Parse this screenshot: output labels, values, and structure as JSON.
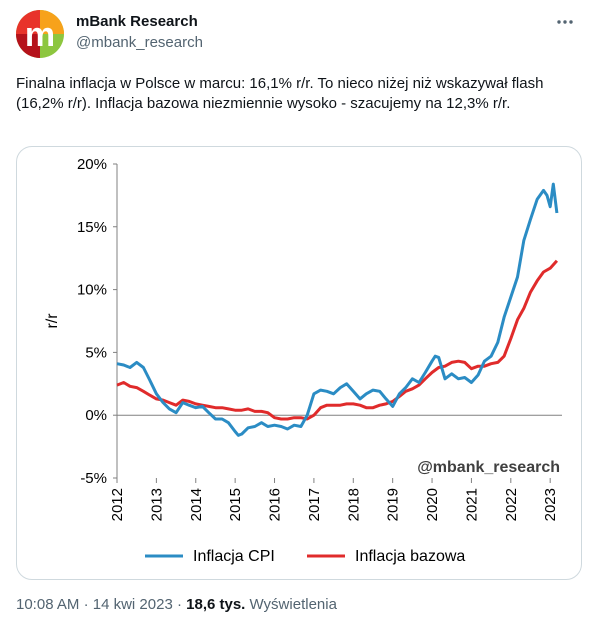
{
  "tweet": {
    "author_name": "mBank Research",
    "author_handle": "@mbank_research",
    "avatar_letter": "m",
    "text": "Finalna inflacja w Polsce w marcu: 16,1% r/r. To nieco niżej niż wskazywał flash (16,2% r/r). Inflacja bazowa niezmiennie wysoko - szacujemy na 12,3% r/r.",
    "time": "10:08 AM",
    "sep1": "·",
    "date": "14 kwi 2023",
    "sep2": "·",
    "views_count": "18,6 tys.",
    "views_label": "Wyświetlenia"
  },
  "colors": {
    "cpi": "#2b8cc4",
    "core": "#e02b2b",
    "avatar_bg": "#8dc63f"
  },
  "icons": {
    "more": "more-horizontal-icon"
  },
  "chart_data": {
    "type": "line",
    "ylabel": "r/r",
    "watermark": "@mbank_research",
    "ylim": [
      -5,
      20
    ],
    "yticks": [
      20,
      15,
      10,
      5,
      0,
      -5
    ],
    "ytick_labels": [
      "20%",
      "15%",
      "10%",
      "5%",
      "0%",
      "-5%"
    ],
    "xlim": [
      2012,
      2023.3
    ],
    "xticks": [
      2012,
      2013,
      2014,
      2015,
      2016,
      2017,
      2018,
      2019,
      2020,
      2021,
      2022,
      2023
    ],
    "xtick_labels": [
      "2012",
      "2013",
      "2014",
      "2015",
      "2016",
      "2017",
      "2018",
      "2019",
      "2020",
      "2021",
      "2022",
      "2023"
    ],
    "legend_position": "bottom",
    "series": [
      {
        "name": "Inflacja CPI",
        "x": [
          2012.0,
          2012.17,
          2012.33,
          2012.5,
          2012.67,
          2012.83,
          2013.0,
          2013.17,
          2013.33,
          2013.5,
          2013.67,
          2013.83,
          2014.0,
          2014.17,
          2014.33,
          2014.5,
          2014.67,
          2014.83,
          2015.0,
          2015.08,
          2015.17,
          2015.33,
          2015.5,
          2015.67,
          2015.83,
          2016.0,
          2016.17,
          2016.33,
          2016.5,
          2016.67,
          2016.83,
          2017.0,
          2017.17,
          2017.33,
          2017.5,
          2017.67,
          2017.83,
          2018.0,
          2018.17,
          2018.33,
          2018.5,
          2018.67,
          2018.83,
          2019.0,
          2019.17,
          2019.33,
          2019.5,
          2019.67,
          2019.83,
          2020.0,
          2020.08,
          2020.17,
          2020.33,
          2020.5,
          2020.67,
          2020.83,
          2021.0,
          2021.17,
          2021.33,
          2021.5,
          2021.67,
          2021.83,
          2022.0,
          2022.17,
          2022.33,
          2022.5,
          2022.67,
          2022.83,
          2022.92,
          2023.0,
          2023.08,
          2023.17
        ],
        "values": [
          4.1,
          4.0,
          3.8,
          4.2,
          3.8,
          2.8,
          1.7,
          1.0,
          0.5,
          0.2,
          1.0,
          0.8,
          0.6,
          0.7,
          0.2,
          -0.3,
          -0.3,
          -0.6,
          -1.3,
          -1.6,
          -1.5,
          -1.0,
          -0.9,
          -0.6,
          -0.9,
          -0.8,
          -0.9,
          -1.1,
          -0.8,
          -0.9,
          0.0,
          1.7,
          2.0,
          1.9,
          1.7,
          2.2,
          2.5,
          1.9,
          1.3,
          1.7,
          2.0,
          1.9,
          1.3,
          0.7,
          1.7,
          2.2,
          2.9,
          2.6,
          3.4,
          4.3,
          4.7,
          4.6,
          2.9,
          3.3,
          2.9,
          3.0,
          2.6,
          3.2,
          4.3,
          4.7,
          5.8,
          7.8,
          9.4,
          11.0,
          13.9,
          15.6,
          17.2,
          17.9,
          17.5,
          16.6,
          18.4,
          16.1
        ]
      },
      {
        "name": "Inflacja bazowa",
        "x": [
          2012.0,
          2012.17,
          2012.33,
          2012.5,
          2012.67,
          2012.83,
          2013.0,
          2013.17,
          2013.33,
          2013.5,
          2013.67,
          2013.83,
          2014.0,
          2014.17,
          2014.33,
          2014.5,
          2014.67,
          2014.83,
          2015.0,
          2015.17,
          2015.33,
          2015.5,
          2015.67,
          2015.83,
          2016.0,
          2016.17,
          2016.33,
          2016.5,
          2016.67,
          2016.83,
          2017.0,
          2017.17,
          2017.33,
          2017.5,
          2017.67,
          2017.83,
          2018.0,
          2018.17,
          2018.33,
          2018.5,
          2018.67,
          2018.83,
          2019.0,
          2019.17,
          2019.33,
          2019.5,
          2019.67,
          2019.83,
          2020.0,
          2020.17,
          2020.33,
          2020.5,
          2020.67,
          2020.83,
          2021.0,
          2021.17,
          2021.33,
          2021.5,
          2021.67,
          2021.83,
          2022.0,
          2022.17,
          2022.33,
          2022.5,
          2022.67,
          2022.83,
          2023.0,
          2023.17
        ],
        "values": [
          2.4,
          2.6,
          2.3,
          2.2,
          1.9,
          1.6,
          1.3,
          1.2,
          1.0,
          0.8,
          1.2,
          1.1,
          0.9,
          0.8,
          0.7,
          0.6,
          0.6,
          0.5,
          0.4,
          0.4,
          0.5,
          0.3,
          0.3,
          0.2,
          -0.2,
          -0.3,
          -0.3,
          -0.2,
          -0.2,
          -0.3,
          0.0,
          0.6,
          0.8,
          0.8,
          0.8,
          0.9,
          0.9,
          0.8,
          0.6,
          0.6,
          0.8,
          0.9,
          1.1,
          1.5,
          1.9,
          2.1,
          2.4,
          2.9,
          3.4,
          3.8,
          3.9,
          4.2,
          4.3,
          4.2,
          3.7,
          3.9,
          3.9,
          4.1,
          4.2,
          4.7,
          6.1,
          7.6,
          8.5,
          9.8,
          10.7,
          11.4,
          11.7,
          12.3
        ]
      }
    ]
  }
}
